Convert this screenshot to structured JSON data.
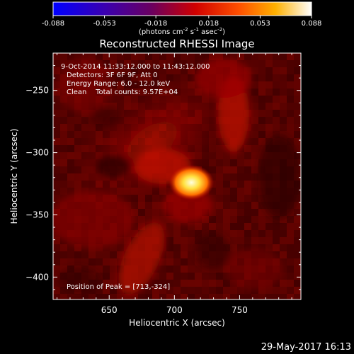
{
  "chart_data": {
    "type": "heatmap",
    "title": "Reconstructed RHESSI Image",
    "colorbar": {
      "ticks": [
        "-0.088",
        "-0.053",
        "-0.018",
        "0.018",
        "0.053",
        "0.088"
      ],
      "range": [
        -0.088,
        0.088
      ],
      "unit_label": "(photons cm",
      "unit_sup1": "-2",
      "unit_mid": " s",
      "unit_sup2": "-1",
      "unit_mid2": " asec",
      "unit_sup3": "-2",
      "unit_end": ")"
    },
    "xlabel": "Heliocentric X (arcsec)",
    "ylabel": "Heliocentric Y (arcsec)",
    "xlim": [
      607,
      797
    ],
    "ylim": [
      -418,
      -220
    ],
    "x_ticks": [
      650,
      700,
      750
    ],
    "y_ticks": [
      -250,
      -300,
      -350,
      -400
    ],
    "info_lines": [
      " 9-Oct-2014 11:33:12.000 to 11:43:12.000",
      "Detectors: 3F 6F 9F, Att 0",
      "Energy Range: 6.0 - 12.0 keV",
      "Clean    Total counts: 9.57E+04"
    ],
    "peak_label": "Position of Peak = [713,-324]",
    "peak": {
      "x": 713,
      "y": -324
    },
    "timestamp": "29-May-2017 16:13",
    "colors": {
      "background": "#000000",
      "text": "#ffffff",
      "colormap": [
        "#0000ff",
        "#3a00a0",
        "#600060",
        "#ff0000",
        "#ffa000",
        "#ffffff"
      ]
    }
  }
}
